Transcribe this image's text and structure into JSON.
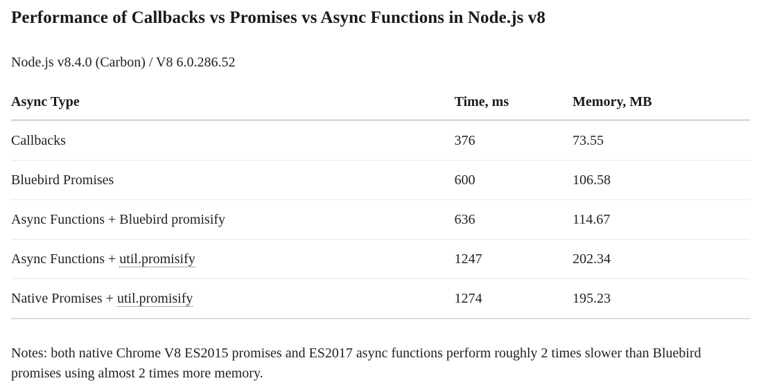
{
  "page": {
    "title": "Performance of Callbacks vs Promises vs Async Functions in Node.js v8",
    "subtitle": "Node.js v8.4.0 (Carbon) / V8 6.0.286.52",
    "notes": "Notes: both native Chrome V8 ES2015 promises and ES2017 async functions perform roughly 2 times slower than Bluebird promises using almost 2 times more memory."
  },
  "table": {
    "columns": {
      "type": "Async Type",
      "time": "Time, ms",
      "memory": "Memory, MB"
    },
    "rows": [
      {
        "label_prefix": "Callbacks",
        "link_text": "",
        "time_ms": "376",
        "memory_mb": "73.55"
      },
      {
        "label_prefix": "Bluebird Promises",
        "link_text": "",
        "time_ms": "600",
        "memory_mb": "106.58"
      },
      {
        "label_prefix": "Async Functions + Bluebird promisify",
        "link_text": "",
        "time_ms": "636",
        "memory_mb": "114.67"
      },
      {
        "label_prefix": "Async Functions + ",
        "link_text": "util.promisify",
        "time_ms": "1247",
        "memory_mb": "202.34"
      },
      {
        "label_prefix": "Native Promises + ",
        "link_text": "util.promisify",
        "time_ms": "1274",
        "memory_mb": "195.23"
      }
    ]
  },
  "chart_data": {
    "type": "table",
    "title": "Performance of Callbacks vs Promises vs Async Functions in Node.js v8",
    "subtitle": "Node.js v8.4.0 (Carbon) / V8 6.0.286.52",
    "columns": [
      "Async Type",
      "Time, ms",
      "Memory, MB"
    ],
    "categories": [
      "Callbacks",
      "Bluebird Promises",
      "Async Functions + Bluebird promisify",
      "Async Functions + util.promisify",
      "Native Promises + util.promisify"
    ],
    "series": [
      {
        "name": "Time, ms",
        "values": [
          376,
          600,
          636,
          1247,
          1274
        ]
      },
      {
        "name": "Memory, MB",
        "values": [
          73.55,
          106.58,
          114.67,
          202.34,
          195.23
        ]
      }
    ],
    "notes": "Notes: both native Chrome V8 ES2015 promises and ES2017 async functions perform roughly 2 times slower than Bluebird promises using almost 2 times more memory."
  },
  "colors": {
    "text": "#212121",
    "heading": "#1a1a1a",
    "divider_thin": "#e8e8e8",
    "divider_thick": "#dcdcdc",
    "background": "#ffffff"
  }
}
